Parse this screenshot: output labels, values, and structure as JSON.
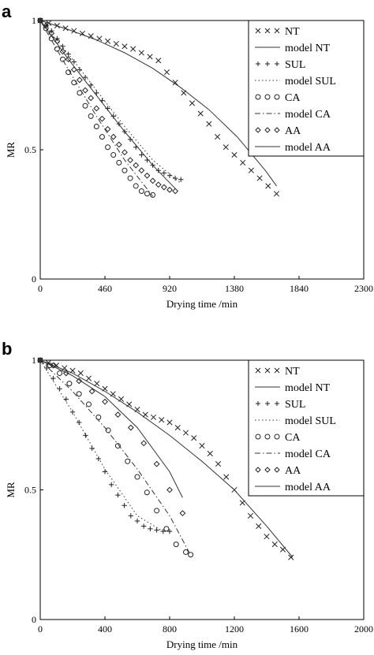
{
  "chart_data": [
    {
      "type": "scatter",
      "panel_label": "a",
      "xlabel": "Drying time /min",
      "ylabel": "MR",
      "xlim": [
        0,
        2300
      ],
      "ylim": [
        0,
        1
      ],
      "xticks": [
        0,
        460,
        920,
        1380,
        1840,
        2300
      ],
      "yticks": [
        0,
        0.5,
        1
      ],
      "yticklabels": [
        "0",
        "0.5",
        "1"
      ],
      "grid": false,
      "legend_position": "top-right",
      "legend": [
        {
          "label": "NT",
          "marker": "x"
        },
        {
          "label": "model NT",
          "line": "solid"
        },
        {
          "label": "SUL",
          "marker": "+"
        },
        {
          "label": "model SUL",
          "line": "dotted"
        },
        {
          "label": "CA",
          "marker": "o"
        },
        {
          "label": "model CA",
          "line": "dashdot"
        },
        {
          "label": "AA",
          "marker": "diamond"
        },
        {
          "label": "model AA",
          "line": "solid"
        }
      ],
      "series": [
        {
          "marker": "x",
          "x": [
            0,
            60,
            120,
            180,
            240,
            300,
            360,
            420,
            480,
            540,
            600,
            660,
            720,
            780,
            840,
            900,
            960,
            1020,
            1080,
            1140,
            1200,
            1260,
            1320,
            1380,
            1440,
            1500,
            1560,
            1620,
            1680
          ],
          "y": [
            1.0,
            0.99,
            0.98,
            0.97,
            0.96,
            0.95,
            0.94,
            0.93,
            0.92,
            0.91,
            0.9,
            0.89,
            0.875,
            0.86,
            0.845,
            0.8,
            0.76,
            0.72,
            0.68,
            0.64,
            0.6,
            0.55,
            0.51,
            0.48,
            0.45,
            0.42,
            0.39,
            0.36,
            0.33
          ]
        },
        {
          "line": "solid",
          "x": [
            0,
            200,
            400,
            600,
            800,
            1000,
            1200,
            1400,
            1600,
            1680
          ],
          "y": [
            1.0,
            0.965,
            0.925,
            0.875,
            0.815,
            0.74,
            0.655,
            0.55,
            0.42,
            0.36
          ]
        },
        {
          "marker": "+",
          "x": [
            0,
            40,
            80,
            120,
            160,
            200,
            240,
            280,
            320,
            360,
            400,
            440,
            480,
            520,
            560,
            600,
            640,
            680,
            720,
            760,
            800,
            840,
            880,
            920,
            960,
            1000
          ],
          "y": [
            1.0,
            0.98,
            0.96,
            0.93,
            0.9,
            0.87,
            0.84,
            0.81,
            0.78,
            0.75,
            0.72,
            0.69,
            0.66,
            0.63,
            0.6,
            0.57,
            0.54,
            0.51,
            0.48,
            0.46,
            0.44,
            0.42,
            0.41,
            0.4,
            0.39,
            0.385
          ]
        },
        {
          "line": "dotted",
          "x": [
            0,
            200,
            400,
            600,
            800,
            1000
          ],
          "y": [
            1.0,
            0.87,
            0.73,
            0.59,
            0.46,
            0.37
          ]
        },
        {
          "marker": "o",
          "x": [
            0,
            40,
            80,
            120,
            160,
            200,
            240,
            280,
            320,
            360,
            400,
            440,
            480,
            520,
            560,
            600,
            640,
            680,
            720,
            760,
            800
          ],
          "y": [
            1.0,
            0.97,
            0.93,
            0.89,
            0.85,
            0.8,
            0.76,
            0.72,
            0.67,
            0.63,
            0.59,
            0.55,
            0.51,
            0.48,
            0.45,
            0.42,
            0.39,
            0.36,
            0.34,
            0.33,
            0.325
          ]
        },
        {
          "line": "dashdot",
          "x": [
            0,
            200,
            400,
            600,
            800
          ],
          "y": [
            1.0,
            0.81,
            0.63,
            0.46,
            0.32
          ]
        },
        {
          "marker": "diamond",
          "x": [
            0,
            40,
            80,
            120,
            160,
            200,
            240,
            280,
            320,
            360,
            400,
            440,
            480,
            520,
            560,
            600,
            640,
            680,
            720,
            760,
            800,
            840,
            880,
            920,
            960
          ],
          "y": [
            1.0,
            0.98,
            0.95,
            0.92,
            0.88,
            0.85,
            0.81,
            0.77,
            0.73,
            0.7,
            0.66,
            0.62,
            0.58,
            0.55,
            0.52,
            0.49,
            0.46,
            0.44,
            0.42,
            0.4,
            0.38,
            0.365,
            0.355,
            0.345,
            0.34
          ]
        },
        {
          "line": "solid",
          "x": [
            0,
            200,
            400,
            600,
            800,
            960
          ],
          "y": [
            1.0,
            0.85,
            0.71,
            0.57,
            0.44,
            0.35
          ]
        }
      ]
    },
    {
      "type": "scatter",
      "panel_label": "b",
      "xlabel": "Drying time /min",
      "ylabel": "MR",
      "xlim": [
        0,
        2000
      ],
      "ylim": [
        0,
        1
      ],
      "xticks": [
        0,
        400,
        800,
        1200,
        1600,
        2000
      ],
      "yticks": [
        0,
        0.5,
        1
      ],
      "yticklabels": [
        "0",
        "0.5",
        "1"
      ],
      "grid": false,
      "legend_position": "top-right",
      "legend": [
        {
          "label": "NT",
          "marker": "x"
        },
        {
          "label": "model NT",
          "line": "solid"
        },
        {
          "label": "SUL",
          "marker": "+"
        },
        {
          "label": "model SUL",
          "line": "dotted"
        },
        {
          "label": "CA",
          "marker": "o"
        },
        {
          "label": "model CA",
          "line": "dashdot"
        },
        {
          "label": "AA",
          "marker": "diamond"
        },
        {
          "label": "model AA",
          "line": "solid"
        }
      ],
      "series": [
        {
          "marker": "x",
          "x": [
            0,
            50,
            100,
            150,
            200,
            250,
            300,
            350,
            400,
            450,
            500,
            550,
            600,
            650,
            700,
            750,
            800,
            850,
            900,
            950,
            1000,
            1050,
            1100,
            1150,
            1200,
            1250,
            1300,
            1350,
            1400,
            1450,
            1500,
            1550
          ],
          "y": [
            1.0,
            0.99,
            0.98,
            0.97,
            0.96,
            0.95,
            0.93,
            0.91,
            0.89,
            0.87,
            0.85,
            0.83,
            0.81,
            0.79,
            0.78,
            0.77,
            0.76,
            0.74,
            0.72,
            0.7,
            0.67,
            0.64,
            0.6,
            0.55,
            0.5,
            0.45,
            0.4,
            0.36,
            0.32,
            0.29,
            0.27,
            0.24
          ]
        },
        {
          "line": "solid",
          "x": [
            0,
            200,
            400,
            600,
            800,
            1000,
            1200,
            1400,
            1560
          ],
          "y": [
            1.0,
            0.95,
            0.88,
            0.8,
            0.71,
            0.61,
            0.5,
            0.36,
            0.24
          ]
        },
        {
          "marker": "+",
          "x": [
            0,
            40,
            80,
            120,
            160,
            200,
            240,
            280,
            320,
            360,
            400,
            440,
            480,
            520,
            560,
            600,
            640,
            680,
            720,
            760,
            800
          ],
          "y": [
            1.0,
            0.97,
            0.93,
            0.89,
            0.85,
            0.8,
            0.76,
            0.71,
            0.66,
            0.62,
            0.57,
            0.52,
            0.48,
            0.44,
            0.4,
            0.38,
            0.36,
            0.35,
            0.345,
            0.34,
            0.34
          ]
        },
        {
          "line": "dotted",
          "x": [
            0,
            200,
            400,
            600,
            760
          ],
          "y": [
            1.0,
            0.8,
            0.58,
            0.4,
            0.34
          ]
        },
        {
          "marker": "o",
          "x": [
            0,
            60,
            120,
            180,
            240,
            300,
            360,
            420,
            480,
            540,
            600,
            660,
            720,
            780,
            840,
            900,
            930
          ],
          "y": [
            1.0,
            0.98,
            0.95,
            0.91,
            0.87,
            0.83,
            0.78,
            0.73,
            0.67,
            0.61,
            0.55,
            0.49,
            0.42,
            0.35,
            0.29,
            0.26,
            0.25
          ]
        },
        {
          "line": "dashdot",
          "x": [
            0,
            200,
            400,
            600,
            800,
            920
          ],
          "y": [
            1.0,
            0.88,
            0.74,
            0.58,
            0.4,
            0.26
          ]
        },
        {
          "marker": "diamond",
          "x": [
            0,
            80,
            160,
            240,
            320,
            400,
            480,
            560,
            640,
            720,
            800,
            880
          ],
          "y": [
            1.0,
            0.98,
            0.95,
            0.92,
            0.88,
            0.84,
            0.79,
            0.74,
            0.68,
            0.6,
            0.5,
            0.41
          ]
        },
        {
          "line": "solid",
          "x": [
            0,
            200,
            400,
            600,
            800,
            880
          ],
          "y": [
            1.0,
            0.94,
            0.86,
            0.74,
            0.57,
            0.47
          ]
        }
      ]
    }
  ]
}
